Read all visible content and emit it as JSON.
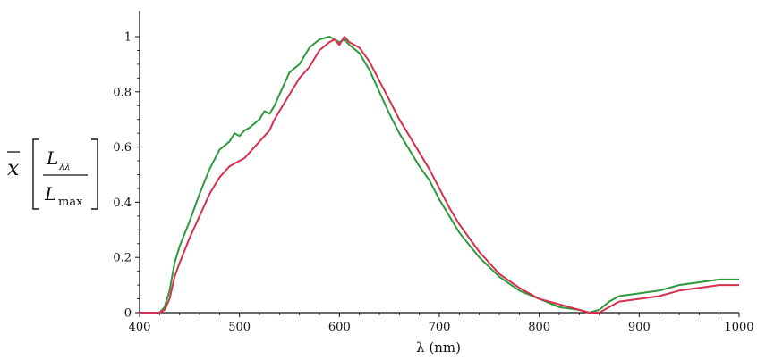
{
  "chart_data": {
    "type": "line",
    "title": "",
    "xlabel": "λ (nm)",
    "ylabel": {
      "prefix": "x",
      "numerator": "L",
      "numerator_sub": "λλ",
      "denominator": "L",
      "denominator_sub": "max"
    },
    "xlim": [
      400,
      1000
    ],
    "ylim": [
      0,
      1
    ],
    "x_ticks": [
      400,
      500,
      600,
      700,
      800,
      900,
      1000
    ],
    "x_tick_labels": [
      "400",
      "500",
      "600",
      "700",
      "800",
      "900",
      "1000"
    ],
    "y_ticks": [
      0,
      0.2,
      0.4,
      0.6,
      0.8,
      1
    ],
    "y_tick_labels": [
      "0",
      "0.2",
      "0.4",
      "0.6",
      "0.8",
      "1"
    ],
    "grid": false,
    "legend": "none",
    "series": [
      {
        "color": "#2e9a3e",
        "x": [
          400,
          420,
          425,
          430,
          435,
          440,
          450,
          460,
          470,
          480,
          490,
          495,
          500,
          505,
          510,
          520,
          525,
          530,
          535,
          540,
          550,
          560,
          570,
          580,
          590,
          595,
          600,
          605,
          610,
          620,
          630,
          640,
          650,
          660,
          670,
          680,
          690,
          700,
          710,
          720,
          740,
          760,
          780,
          800,
          820,
          840,
          850,
          860,
          870,
          880,
          900,
          920,
          940,
          960,
          980,
          1000
        ],
        "y": [
          0.0,
          0.0,
          0.02,
          0.08,
          0.18,
          0.24,
          0.33,
          0.43,
          0.52,
          0.59,
          0.62,
          0.65,
          0.64,
          0.66,
          0.67,
          0.7,
          0.73,
          0.72,
          0.75,
          0.79,
          0.87,
          0.9,
          0.96,
          0.99,
          1.0,
          0.99,
          0.98,
          0.99,
          0.97,
          0.94,
          0.88,
          0.8,
          0.72,
          0.65,
          0.59,
          0.53,
          0.48,
          0.41,
          0.35,
          0.29,
          0.2,
          0.13,
          0.08,
          0.05,
          0.02,
          0.01,
          0.0,
          0.01,
          0.04,
          0.06,
          0.07,
          0.08,
          0.1,
          0.11,
          0.12,
          0.12
        ]
      },
      {
        "color": "#d6304e",
        "x": [
          400,
          420,
          425,
          430,
          435,
          440,
          450,
          460,
          470,
          480,
          490,
          500,
          505,
          510,
          520,
          530,
          535,
          540,
          550,
          560,
          570,
          580,
          590,
          595,
          600,
          605,
          610,
          620,
          630,
          640,
          650,
          660,
          670,
          680,
          690,
          700,
          710,
          720,
          740,
          760,
          780,
          800,
          820,
          840,
          850,
          860,
          870,
          880,
          900,
          920,
          940,
          960,
          980,
          1000
        ],
        "y": [
          0.0,
          0.0,
          0.01,
          0.05,
          0.13,
          0.18,
          0.27,
          0.35,
          0.43,
          0.49,
          0.53,
          0.55,
          0.56,
          0.58,
          0.62,
          0.66,
          0.7,
          0.73,
          0.79,
          0.85,
          0.89,
          0.95,
          0.98,
          0.99,
          0.97,
          1.0,
          0.98,
          0.96,
          0.91,
          0.84,
          0.77,
          0.7,
          0.64,
          0.58,
          0.52,
          0.45,
          0.38,
          0.32,
          0.22,
          0.14,
          0.09,
          0.05,
          0.03,
          0.01,
          0.0,
          0.0,
          0.02,
          0.04,
          0.05,
          0.06,
          0.08,
          0.09,
          0.1,
          0.1
        ]
      }
    ]
  }
}
